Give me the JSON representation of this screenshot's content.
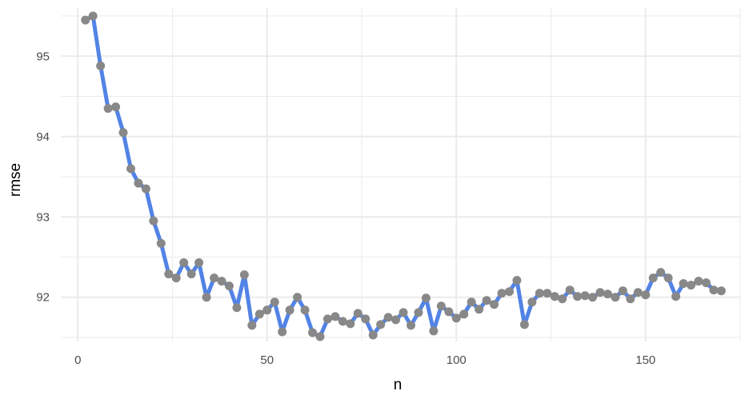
{
  "chart_data": {
    "type": "line",
    "title": "",
    "xlabel": "n",
    "ylabel": "rmse",
    "xlim": [
      -4.5,
      175
    ],
    "ylim": [
      91.45,
      95.6
    ],
    "x_ticks": [
      0,
      50,
      100,
      150
    ],
    "y_ticks": [
      92,
      93,
      94,
      95
    ],
    "x_tick_labels": [
      "0",
      "50",
      "100",
      "150"
    ],
    "y_tick_labels": [
      "92",
      "93",
      "94",
      "95"
    ],
    "grid": true,
    "legend": "none",
    "colors": {
      "line": "#5283E6",
      "points": "#888888",
      "grid": "#EBEBEB"
    },
    "series": [
      {
        "x": [
          2,
          4,
          6,
          8,
          10,
          12,
          14,
          16,
          18,
          20,
          22,
          24,
          26,
          28,
          30,
          32,
          34,
          36,
          38,
          40,
          42,
          44,
          46,
          48,
          50,
          52,
          54,
          56,
          58,
          60,
          62,
          64,
          66,
          68,
          70,
          72,
          74,
          76,
          78,
          80,
          82,
          84,
          86,
          88,
          90,
          92,
          94,
          96,
          98,
          100,
          102,
          104,
          106,
          108,
          110,
          112,
          114,
          116,
          118,
          120,
          122,
          124,
          126,
          128,
          130,
          132,
          134,
          136,
          138,
          140,
          142,
          144,
          146,
          148,
          150,
          152,
          154,
          156,
          158,
          160,
          162,
          164,
          166,
          168,
          170
        ],
        "y": [
          95.45,
          95.5,
          94.88,
          94.35,
          94.37,
          94.05,
          93.6,
          93.42,
          93.35,
          92.95,
          92.67,
          92.29,
          92.24,
          92.43,
          92.29,
          92.43,
          92.0,
          92.24,
          92.2,
          92.14,
          91.87,
          92.28,
          91.65,
          91.79,
          91.84,
          91.94,
          91.57,
          91.84,
          92.0,
          91.84,
          91.56,
          91.51,
          91.73,
          91.76,
          91.7,
          91.67,
          91.8,
          91.73,
          91.53,
          91.66,
          91.75,
          91.72,
          91.81,
          91.65,
          91.81,
          91.99,
          91.58,
          91.89,
          91.82,
          91.74,
          91.79,
          91.94,
          91.85,
          91.96,
          91.91,
          92.05,
          92.07,
          92.21,
          91.66,
          91.94,
          92.05,
          92.05,
          92.01,
          91.98,
          92.09,
          92.01,
          92.02,
          92.0,
          92.06,
          92.04,
          92.0,
          92.08,
          91.98,
          92.06,
          92.03,
          92.24,
          92.31,
          92.24,
          92.01,
          92.17,
          92.15,
          92.2,
          92.18,
          92.09,
          92.08
        ]
      }
    ]
  }
}
